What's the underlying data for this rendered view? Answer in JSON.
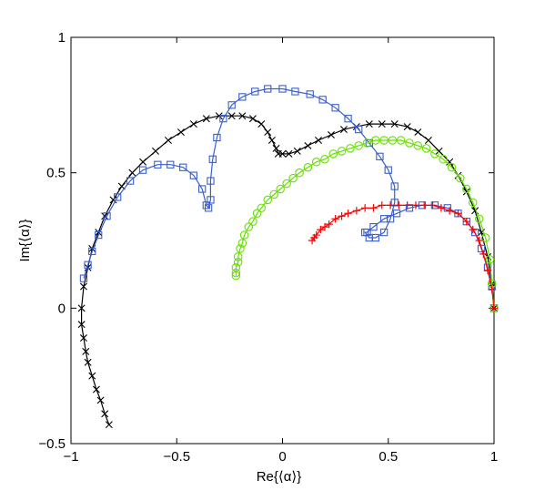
{
  "chart_data": {
    "type": "scatter",
    "title": "",
    "xlabel": "Re{⟨α⟩}",
    "ylabel": "Im{⟨α⟩}",
    "xlim": [
      -1,
      1
    ],
    "ylim": [
      -0.5,
      1
    ],
    "xticks": [
      -1,
      -0.5,
      0,
      0.5,
      1
    ],
    "xtick_labels": [
      "−1",
      "−0.5",
      "0",
      "0.5",
      "1"
    ],
    "yticks": [
      -0.5,
      0,
      0.5,
      1
    ],
    "ytick_labels": [
      "−0.5",
      "0",
      "0.5",
      "1"
    ],
    "grid": false,
    "series": [
      {
        "color": "#000000",
        "marker": "x",
        "x": [
          1.0,
          0.99,
          0.97,
          0.94,
          0.91,
          0.87,
          0.83,
          0.79,
          0.74,
          0.69,
          0.64,
          0.59,
          0.53,
          0.47,
          0.41,
          0.35,
          0.29,
          0.23,
          0.17,
          0.12,
          0.07,
          0.03,
          0.0,
          -0.02,
          -0.03,
          -0.05,
          -0.07,
          -0.1,
          -0.14,
          -0.19,
          -0.24,
          -0.3,
          -0.36,
          -0.42,
          -0.48,
          -0.54,
          -0.6,
          -0.66,
          -0.71,
          -0.76,
          -0.8,
          -0.84,
          -0.87,
          -0.9,
          -0.92,
          -0.94,
          -0.95,
          -0.95,
          -0.94,
          -0.93,
          -0.92,
          -0.9,
          -0.88,
          -0.86,
          -0.84,
          -0.82
        ],
        "y": [
          0.0,
          0.09,
          0.19,
          0.28,
          0.36,
          0.43,
          0.49,
          0.54,
          0.58,
          0.62,
          0.65,
          0.67,
          0.68,
          0.68,
          0.68,
          0.67,
          0.66,
          0.64,
          0.62,
          0.6,
          0.58,
          0.57,
          0.57,
          0.57,
          0.59,
          0.62,
          0.65,
          0.68,
          0.7,
          0.71,
          0.71,
          0.71,
          0.7,
          0.68,
          0.65,
          0.62,
          0.58,
          0.54,
          0.5,
          0.45,
          0.4,
          0.34,
          0.28,
          0.22,
          0.15,
          0.08,
          0.0,
          -0.06,
          -0.11,
          -0.16,
          -0.2,
          -0.25,
          -0.3,
          -0.34,
          -0.39,
          -0.43
        ]
      },
      {
        "color": "#3a5fcd",
        "marker": "square",
        "x": [
          1.0,
          0.99,
          0.97,
          0.94,
          0.91,
          0.87,
          0.83,
          0.78,
          0.72,
          0.66,
          0.6,
          0.54,
          0.48,
          0.43,
          0.4,
          0.39,
          0.41,
          0.44,
          0.48,
          0.51,
          0.53,
          0.53,
          0.5,
          0.46,
          0.41,
          0.36,
          0.31,
          0.25,
          0.19,
          0.13,
          0.06,
          0.0,
          -0.07,
          -0.13,
          -0.19,
          -0.24,
          -0.28,
          -0.31,
          -0.33,
          -0.34,
          -0.34,
          -0.35,
          -0.36,
          -0.38,
          -0.42,
          -0.47,
          -0.53,
          -0.59,
          -0.66,
          -0.72,
          -0.78,
          -0.83,
          -0.87,
          -0.9,
          -0.92,
          -0.94
        ],
        "y": [
          0.0,
          0.08,
          0.15,
          0.22,
          0.28,
          0.32,
          0.35,
          0.37,
          0.38,
          0.38,
          0.37,
          0.35,
          0.33,
          0.3,
          0.28,
          0.28,
          0.26,
          0.26,
          0.28,
          0.33,
          0.39,
          0.45,
          0.51,
          0.56,
          0.61,
          0.66,
          0.7,
          0.74,
          0.77,
          0.79,
          0.8,
          0.81,
          0.81,
          0.8,
          0.78,
          0.75,
          0.7,
          0.63,
          0.55,
          0.47,
          0.4,
          0.37,
          0.38,
          0.44,
          0.49,
          0.52,
          0.53,
          0.53,
          0.51,
          0.47,
          0.41,
          0.34,
          0.27,
          0.21,
          0.16,
          0.11
        ]
      },
      {
        "color": "#66e000",
        "marker": "circle",
        "x": [
          1.0,
          0.99,
          0.98,
          0.96,
          0.93,
          0.9,
          0.87,
          0.84,
          0.8,
          0.76,
          0.72,
          0.68,
          0.64,
          0.6,
          0.56,
          0.52,
          0.48,
          0.44,
          0.4,
          0.36,
          0.32,
          0.28,
          0.24,
          0.2,
          0.16,
          0.12,
          0.08,
          0.05,
          0.02,
          -0.01,
          -0.04,
          -0.07,
          -0.1,
          -0.12,
          -0.14,
          -0.16,
          -0.18,
          -0.19,
          -0.2,
          -0.21,
          -0.21,
          -0.22,
          -0.22,
          -0.22
        ],
        "y": [
          0.0,
          0.09,
          0.18,
          0.26,
          0.33,
          0.39,
          0.44,
          0.48,
          0.52,
          0.55,
          0.57,
          0.59,
          0.6,
          0.61,
          0.62,
          0.62,
          0.62,
          0.62,
          0.61,
          0.6,
          0.59,
          0.58,
          0.57,
          0.55,
          0.54,
          0.52,
          0.5,
          0.48,
          0.46,
          0.44,
          0.42,
          0.4,
          0.37,
          0.35,
          0.32,
          0.3,
          0.27,
          0.24,
          0.22,
          0.19,
          0.17,
          0.15,
          0.13,
          0.12
        ]
      },
      {
        "color": "#ff0000",
        "marker": "plus",
        "x": [
          1.0,
          0.99,
          0.97,
          0.95,
          0.93,
          0.9,
          0.87,
          0.83,
          0.79,
          0.75,
          0.71,
          0.67,
          0.63,
          0.59,
          0.55,
          0.51,
          0.47,
          0.43,
          0.39,
          0.35,
          0.31,
          0.28,
          0.25,
          0.22,
          0.2,
          0.18,
          0.16,
          0.15,
          0.14
        ],
        "y": [
          0.0,
          0.07,
          0.14,
          0.2,
          0.25,
          0.29,
          0.32,
          0.35,
          0.36,
          0.37,
          0.38,
          0.38,
          0.38,
          0.38,
          0.38,
          0.38,
          0.38,
          0.37,
          0.37,
          0.36,
          0.35,
          0.34,
          0.33,
          0.31,
          0.3,
          0.29,
          0.27,
          0.26,
          0.25
        ]
      }
    ]
  }
}
